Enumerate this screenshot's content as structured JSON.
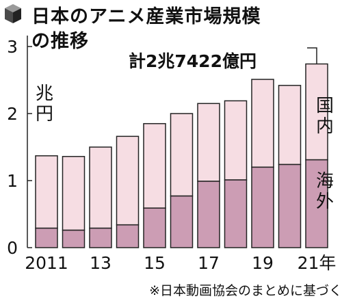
{
  "title_line1": "日本のアニメ産業市場規模",
  "title_line2": "の推移",
  "total_label": "計2兆7422億円",
  "unit_label": "兆円",
  "source_note": "※日本動画協会のまとめに基づく",
  "icon": "cube-icon",
  "colors": {
    "domestic": "#f6dde3",
    "overseas": "#cc9db4",
    "outline": "#222222"
  },
  "chart_data": {
    "type": "bar",
    "stacked": true,
    "title": "日本のアニメ産業市場規模の推移",
    "categories": [
      "2011",
      "2012",
      "2013",
      "2014",
      "2015",
      "2016",
      "2017",
      "2018",
      "2019",
      "2020",
      "2021"
    ],
    "x_tick_labels": [
      "2011",
      "",
      "13",
      "",
      "15",
      "",
      "17",
      "",
      "19",
      "",
      "21年"
    ],
    "y_ticks": [
      "0",
      "1",
      "2",
      "3"
    ],
    "ylim": [
      0,
      3
    ],
    "ylabel": "兆円",
    "grid": false,
    "series": [
      {
        "name": "海外",
        "values": [
          0.29,
          0.26,
          0.29,
          0.34,
          0.59,
          0.77,
          0.99,
          1.01,
          1.2,
          1.24,
          1.31
        ]
      },
      {
        "name": "国内",
        "values": [
          1.08,
          1.1,
          1.21,
          1.32,
          1.26,
          1.23,
          1.16,
          1.18,
          1.31,
          1.18,
          1.43
        ]
      }
    ],
    "annotations": [
      "計2兆7422億円"
    ]
  }
}
